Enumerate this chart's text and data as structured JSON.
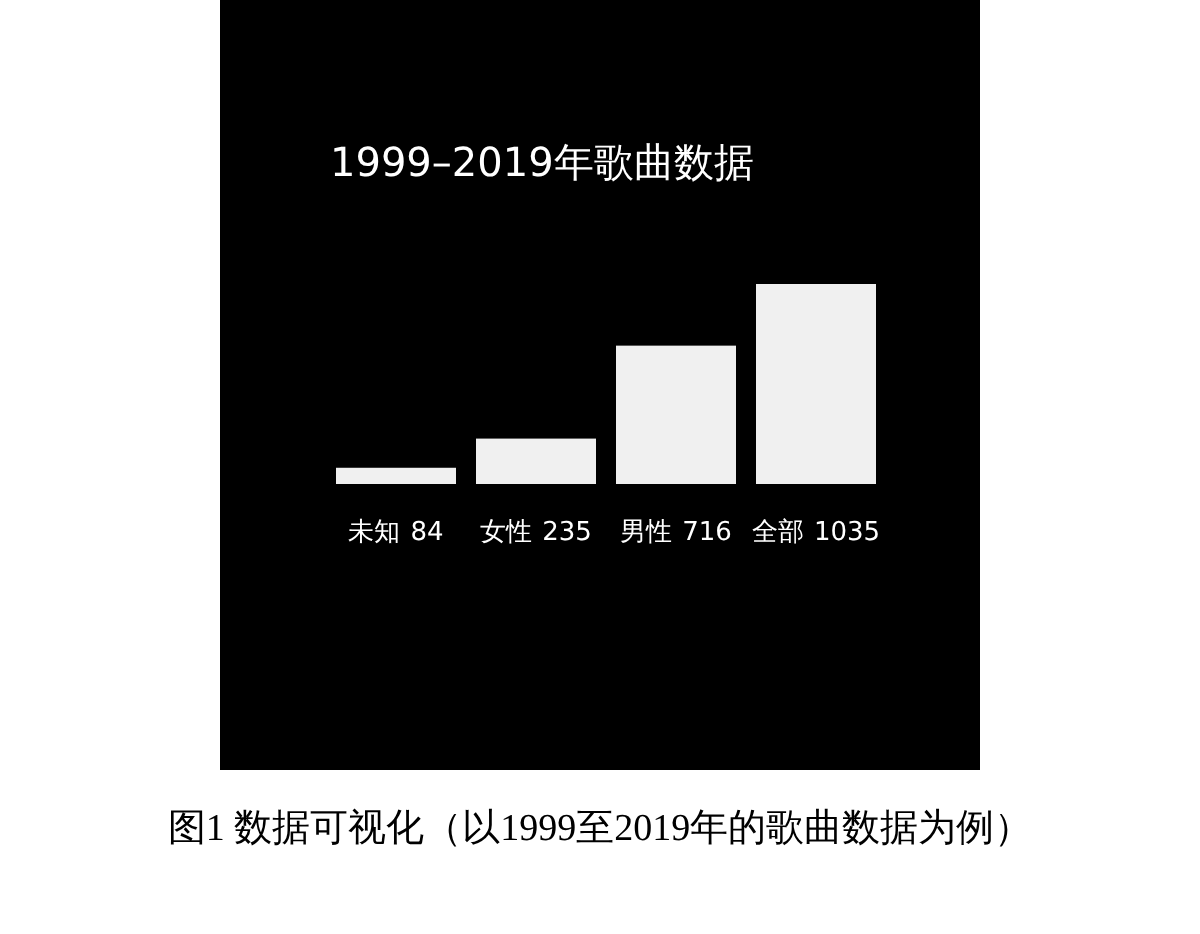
{
  "chart_data": {
    "type": "bar",
    "title": "1999–2019年歌曲数据",
    "categories": [
      "未知",
      "女性",
      "男性",
      "全部"
    ],
    "values": [
      84,
      235,
      716,
      1035
    ],
    "color": "#f0f0f0",
    "data_labels": true,
    "annotations": [
      "图1 数据可视化（以1999至2019年的歌曲数据为例）"
    ]
  }
}
